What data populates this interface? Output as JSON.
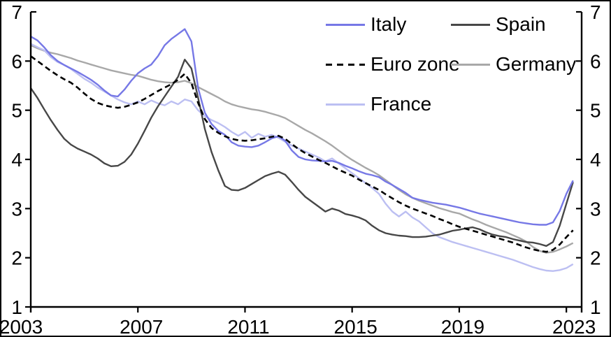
{
  "frame": {
    "background": "#ffffff",
    "border_color": "#000000"
  },
  "legend": {
    "items": [
      {
        "label": "Italy",
        "color": "#7678e6",
        "dash": false
      },
      {
        "label": "Spain",
        "color": "#474747",
        "dash": false
      },
      {
        "label": "Euro zone",
        "color": "#000000",
        "dash": true
      },
      {
        "label": "Germany",
        "color": "#a8a8a8",
        "dash": false
      },
      {
        "label": "France",
        "color": "#bcbff2",
        "dash": false
      }
    ]
  },
  "chart_data": {
    "type": "line",
    "title": "",
    "xlabel": "",
    "ylabel": "",
    "grid": false,
    "legend_position": "top-right-inside",
    "xlim": [
      2003,
      2023.57
    ],
    "ylim": [
      1,
      7
    ],
    "x_ticks": [
      2003,
      2007,
      2011,
      2015,
      2019,
      2023
    ],
    "y_ticks": [
      1,
      2,
      3,
      4,
      5,
      6,
      7
    ],
    "x_start": 2003.0,
    "x_step": 0.25,
    "series": [
      {
        "name": "Italy",
        "color": "#7678e6",
        "dash": false,
        "values": [
          6.5,
          6.42,
          6.28,
          6.12,
          6.0,
          5.92,
          5.85,
          5.78,
          5.7,
          5.62,
          5.52,
          5.4,
          5.3,
          5.28,
          5.42,
          5.6,
          5.75,
          5.85,
          5.93,
          6.1,
          6.32,
          6.45,
          6.55,
          6.65,
          6.4,
          5.45,
          4.95,
          4.72,
          4.58,
          4.5,
          4.35,
          4.28,
          4.26,
          4.25,
          4.28,
          4.35,
          4.43,
          4.47,
          4.38,
          4.18,
          4.05,
          4.0,
          3.98,
          3.97,
          3.96,
          3.97,
          3.93,
          3.87,
          3.82,
          3.76,
          3.71,
          3.68,
          3.64,
          3.55,
          3.48,
          3.4,
          3.32,
          3.22,
          3.18,
          3.15,
          3.12,
          3.1,
          3.08,
          3.05,
          3.02,
          2.98,
          2.94,
          2.9,
          2.87,
          2.84,
          2.81,
          2.78,
          2.75,
          2.72,
          2.7,
          2.68,
          2.67,
          2.67,
          2.72,
          2.95,
          3.3,
          3.57
        ]
      },
      {
        "name": "Spain",
        "color": "#474747",
        "dash": false,
        "values": [
          5.45,
          5.25,
          5.02,
          4.8,
          4.6,
          4.42,
          4.3,
          4.22,
          4.16,
          4.1,
          4.02,
          3.92,
          3.86,
          3.87,
          3.95,
          4.1,
          4.32,
          4.58,
          4.85,
          5.08,
          5.28,
          5.48,
          5.68,
          6.03,
          5.85,
          5.25,
          4.62,
          4.15,
          3.78,
          3.46,
          3.38,
          3.37,
          3.42,
          3.5,
          3.58,
          3.66,
          3.71,
          3.75,
          3.69,
          3.54,
          3.38,
          3.24,
          3.14,
          3.04,
          2.94,
          3.0,
          2.96,
          2.89,
          2.86,
          2.82,
          2.76,
          2.65,
          2.56,
          2.5,
          2.47,
          2.45,
          2.44,
          2.42,
          2.42,
          2.43,
          2.45,
          2.47,
          2.51,
          2.55,
          2.57,
          2.6,
          2.62,
          2.58,
          2.52,
          2.47,
          2.44,
          2.42,
          2.38,
          2.35,
          2.32,
          2.31,
          2.28,
          2.24,
          2.32,
          2.65,
          3.1,
          3.54
        ]
      },
      {
        "name": "Euro zone",
        "color": "#000000",
        "dash": true,
        "values": [
          6.1,
          6.0,
          5.9,
          5.8,
          5.71,
          5.63,
          5.56,
          5.46,
          5.34,
          5.23,
          5.15,
          5.1,
          5.07,
          5.05,
          5.07,
          5.11,
          5.16,
          5.23,
          5.31,
          5.39,
          5.46,
          5.53,
          5.62,
          5.74,
          5.55,
          5.15,
          4.82,
          4.64,
          4.54,
          4.47,
          4.42,
          4.39,
          4.38,
          4.39,
          4.41,
          4.43,
          4.46,
          4.48,
          4.42,
          4.31,
          4.21,
          4.13,
          4.06,
          3.99,
          3.93,
          3.86,
          3.79,
          3.73,
          3.67,
          3.59,
          3.52,
          3.45,
          3.38,
          3.29,
          3.21,
          3.13,
          3.06,
          3.0,
          2.95,
          2.9,
          2.85,
          2.79,
          2.74,
          2.68,
          2.63,
          2.59,
          2.55,
          2.51,
          2.47,
          2.43,
          2.39,
          2.35,
          2.31,
          2.26,
          2.21,
          2.17,
          2.14,
          2.12,
          2.16,
          2.27,
          2.42,
          2.56
        ]
      },
      {
        "name": "Germany",
        "color": "#a8a8a8",
        "dash": false,
        "values": [
          6.32,
          6.26,
          6.21,
          6.17,
          6.14,
          6.1,
          6.06,
          6.01,
          5.97,
          5.93,
          5.89,
          5.85,
          5.81,
          5.78,
          5.75,
          5.72,
          5.7,
          5.66,
          5.62,
          5.59,
          5.57,
          5.56,
          5.57,
          5.6,
          5.55,
          5.47,
          5.4,
          5.33,
          5.26,
          5.18,
          5.12,
          5.08,
          5.05,
          5.02,
          5.0,
          4.97,
          4.93,
          4.89,
          4.84,
          4.76,
          4.68,
          4.6,
          4.53,
          4.45,
          4.37,
          4.28,
          4.18,
          4.08,
          3.99,
          3.91,
          3.83,
          3.76,
          3.68,
          3.58,
          3.48,
          3.38,
          3.29,
          3.22,
          3.16,
          3.11,
          3.06,
          3.01,
          2.97,
          2.93,
          2.9,
          2.84,
          2.78,
          2.73,
          2.67,
          2.62,
          2.57,
          2.52,
          2.46,
          2.4,
          2.33,
          2.22,
          2.14,
          2.1,
          2.12,
          2.17,
          2.23,
          2.3
        ]
      },
      {
        "name": "France",
        "color": "#bcbff2",
        "dash": false,
        "values": [
          6.35,
          6.28,
          6.22,
          6.08,
          5.98,
          5.92,
          5.84,
          5.74,
          5.64,
          5.56,
          5.46,
          5.38,
          5.3,
          5.22,
          5.16,
          5.12,
          5.18,
          5.12,
          5.2,
          5.14,
          5.1,
          5.18,
          5.12,
          5.22,
          5.18,
          5.0,
          4.88,
          4.8,
          4.74,
          4.66,
          4.56,
          4.48,
          4.56,
          4.44,
          4.52,
          4.46,
          4.5,
          4.44,
          4.36,
          4.28,
          4.22,
          4.16,
          4.1,
          4.04,
          3.96,
          4.02,
          3.92,
          3.82,
          3.72,
          3.62,
          3.52,
          3.42,
          3.3,
          3.1,
          2.94,
          2.84,
          2.94,
          2.82,
          2.74,
          2.62,
          2.5,
          2.42,
          2.37,
          2.32,
          2.28,
          2.24,
          2.2,
          2.16,
          2.12,
          2.08,
          2.04,
          2.0,
          1.96,
          1.91,
          1.86,
          1.81,
          1.77,
          1.74,
          1.73,
          1.75,
          1.79,
          1.87
        ]
      }
    ]
  }
}
